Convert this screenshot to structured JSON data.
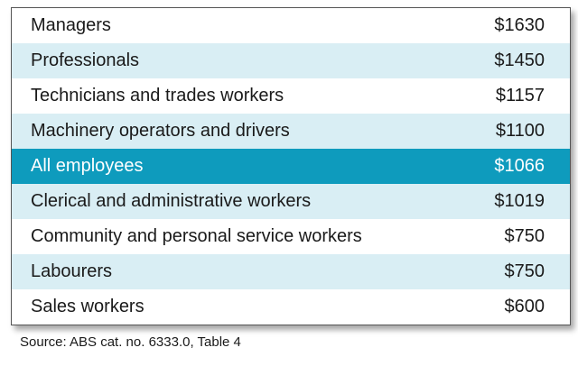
{
  "table": {
    "rows": [
      [
        "Managers",
        "$1630"
      ],
      [
        "Professionals",
        "$1450"
      ],
      [
        "Technicians and trades workers",
        "$1157"
      ],
      [
        "Machinery operators and drivers",
        "$1100"
      ],
      [
        "All employees",
        "$1066"
      ],
      [
        "Clerical and administrative workers",
        "$1019"
      ],
      [
        "Community and personal service workers",
        "$750"
      ],
      [
        "Labourers",
        "$750"
      ],
      [
        "Sales workers",
        "$600"
      ]
    ]
  },
  "source": "Source: ABS cat. no. 6333.0, Table 4"
}
